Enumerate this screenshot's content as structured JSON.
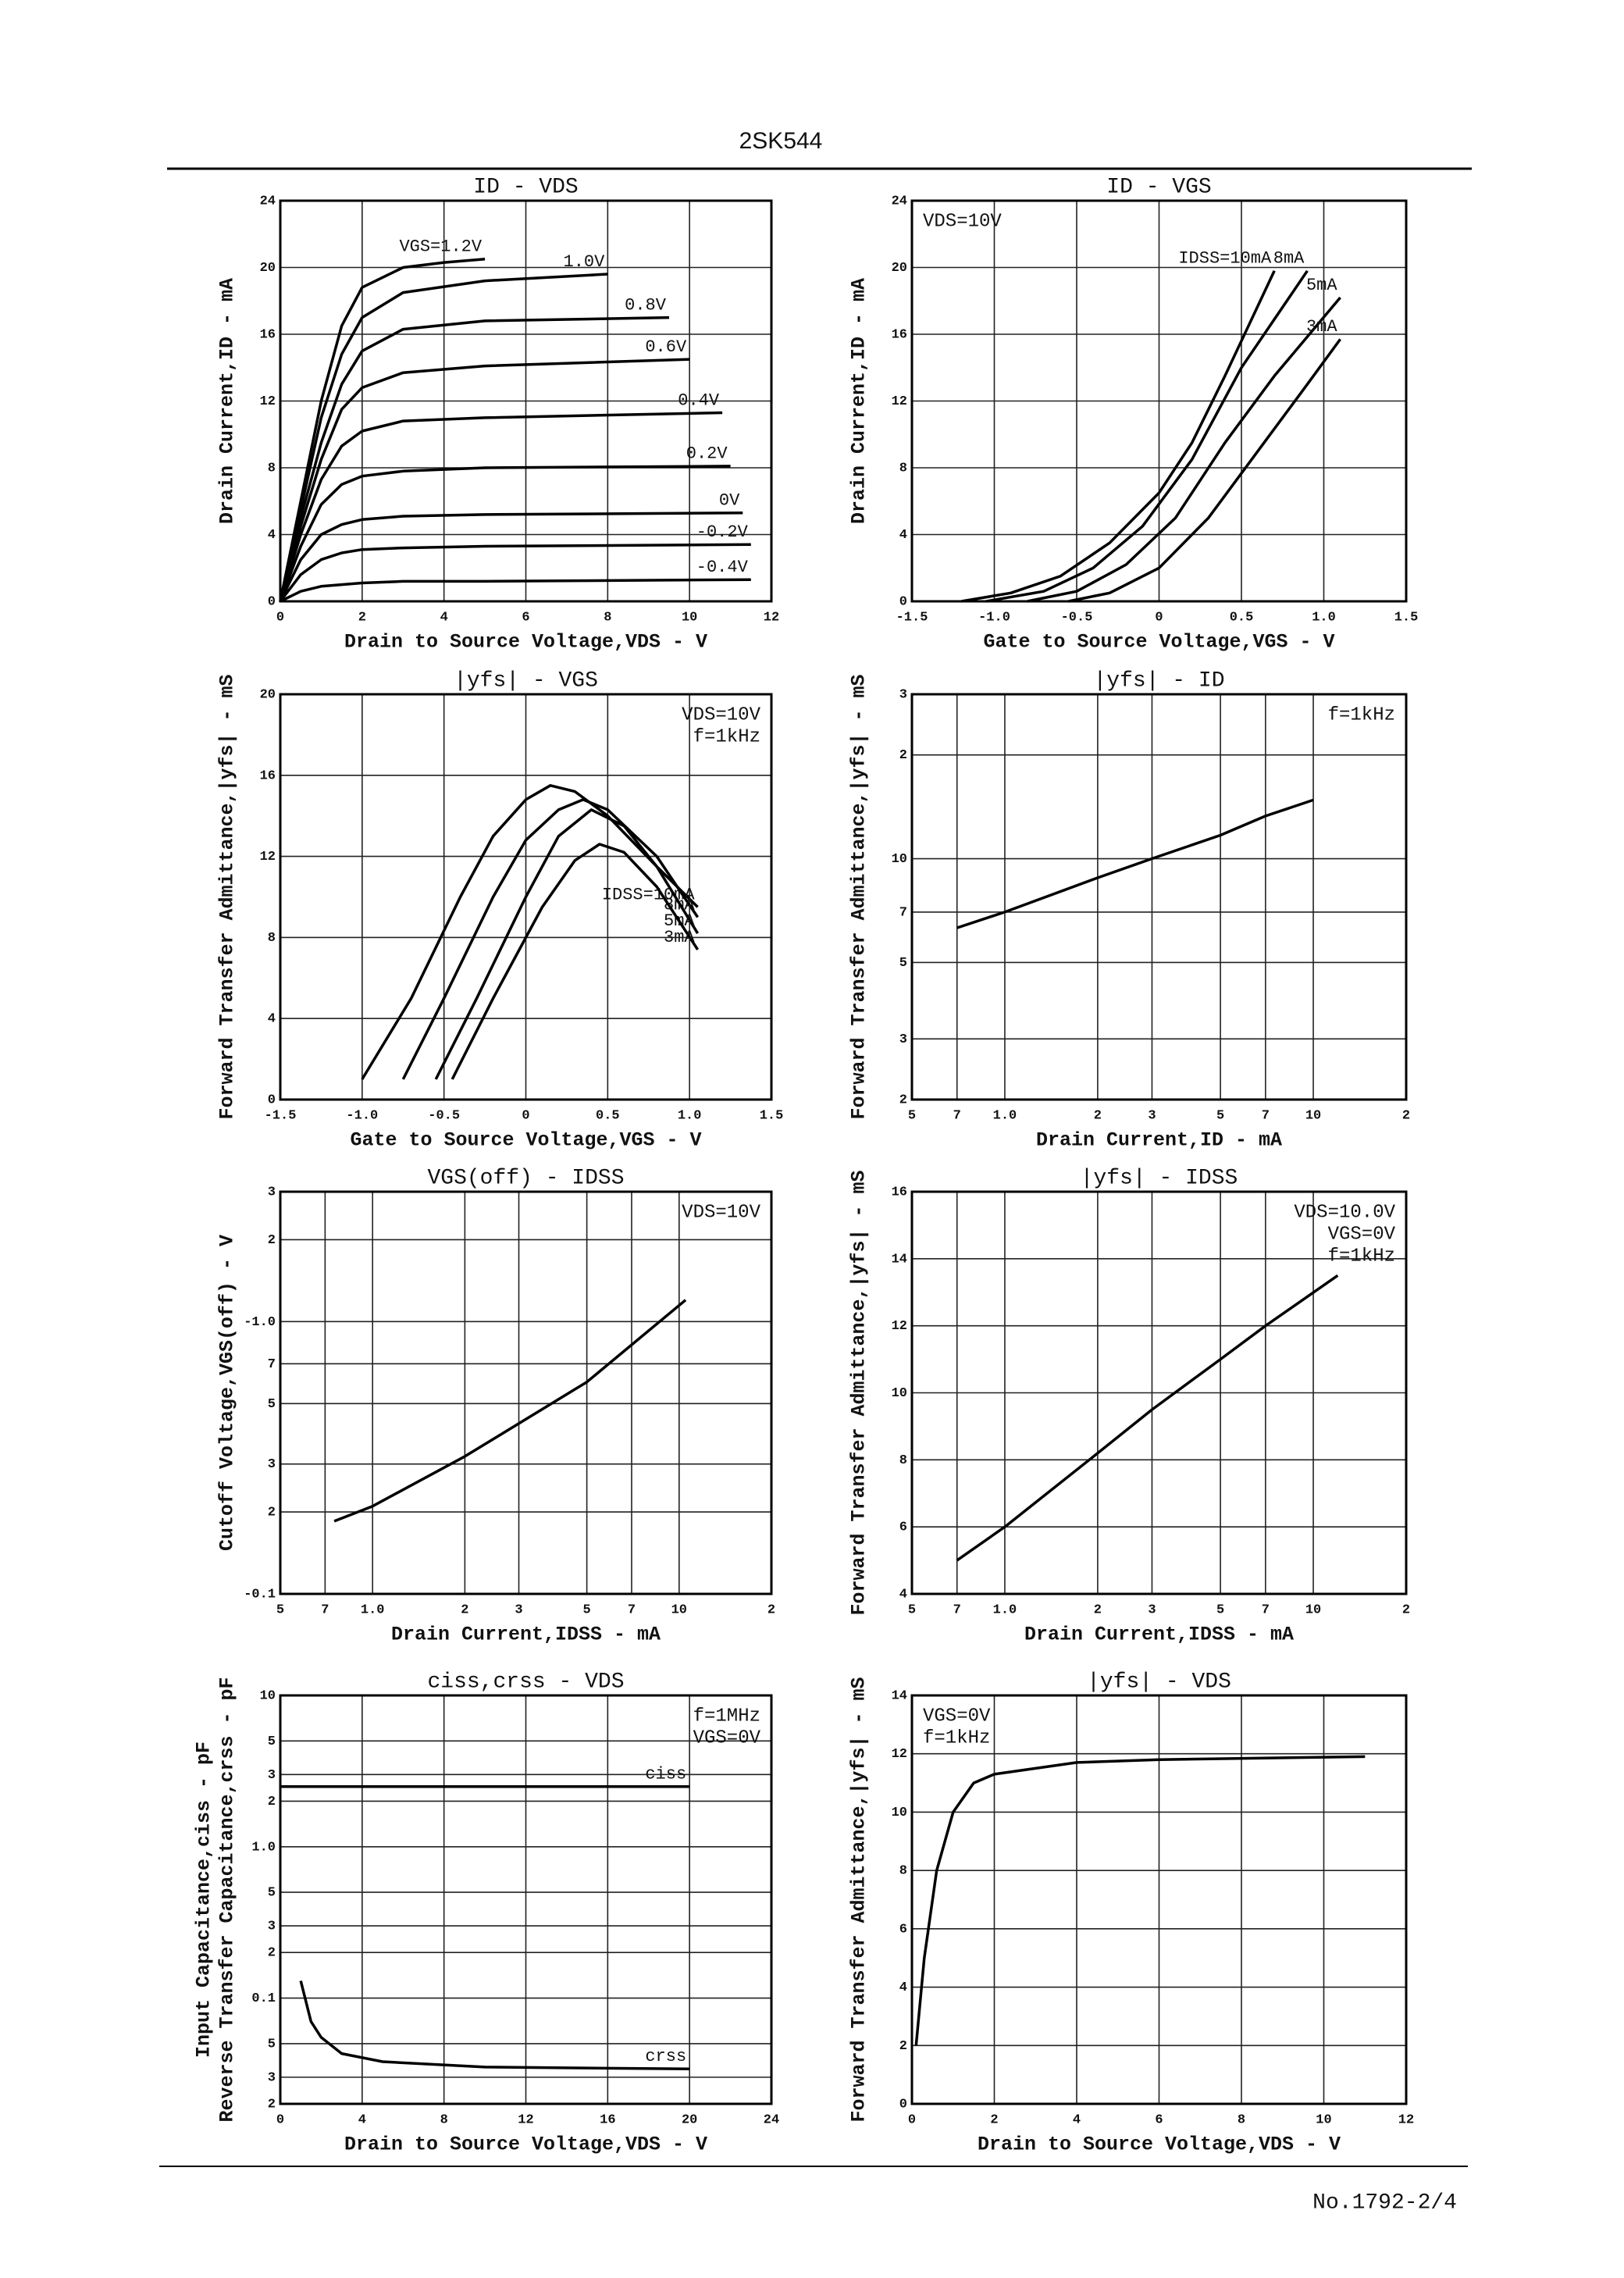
{
  "page": {
    "title": "2SK544",
    "footer": "No.1792-2/4"
  },
  "chart_data": [
    {
      "type": "line",
      "title": "ID - VDS",
      "xlabel": "Drain to Source Voltage,VDS - V",
      "ylabel": "Drain Current,ID - mA",
      "xlim": [
        0,
        12
      ],
      "xticks": [
        0,
        2,
        4,
        6,
        8,
        10,
        12
      ],
      "ylim": [
        0,
        24
      ],
      "yticks": [
        0,
        4,
        8,
        12,
        16,
        20,
        24
      ],
      "grid": true,
      "color": "#000000",
      "series": [
        {
          "name": "VGS=1.2V",
          "x": [
            0,
            0.5,
            1,
            1.5,
            2,
            3,
            4,
            5
          ],
          "values": [
            0,
            6,
            12,
            16.5,
            18.8,
            20,
            20.3,
            20.5
          ]
        },
        {
          "name": "1.0V",
          "x": [
            0,
            0.5,
            1,
            1.5,
            2,
            3,
            5,
            8
          ],
          "values": [
            0,
            5.5,
            11,
            14.8,
            17,
            18.5,
            19.2,
            19.6
          ]
        },
        {
          "name": "0.8V",
          "x": [
            0,
            0.5,
            1,
            1.5,
            2,
            3,
            5,
            9.5
          ],
          "values": [
            0,
            5,
            9.5,
            13,
            15,
            16.3,
            16.8,
            17
          ]
        },
        {
          "name": "0.6V",
          "x": [
            0,
            0.5,
            1,
            1.5,
            2,
            3,
            5,
            10
          ],
          "values": [
            0,
            4.5,
            8.5,
            11.5,
            12.8,
            13.7,
            14.1,
            14.5
          ]
        },
        {
          "name": "0.4V",
          "x": [
            0,
            0.5,
            1,
            1.5,
            2,
            3,
            5,
            10.8
          ],
          "values": [
            0,
            4,
            7.3,
            9.3,
            10.2,
            10.8,
            11,
            11.3
          ]
        },
        {
          "name": "0.2V",
          "x": [
            0,
            0.5,
            1,
            1.5,
            2,
            3,
            5,
            11
          ],
          "values": [
            0,
            3.3,
            5.8,
            7,
            7.5,
            7.8,
            8,
            8.1
          ]
        },
        {
          "name": "0V",
          "x": [
            0,
            0.5,
            1,
            1.5,
            2,
            3,
            5,
            11.3
          ],
          "values": [
            0,
            2.5,
            4,
            4.6,
            4.9,
            5.1,
            5.2,
            5.3
          ]
        },
        {
          "name": "-0.2V",
          "x": [
            0,
            0.5,
            1,
            1.5,
            2,
            3,
            5,
            11.5
          ],
          "values": [
            0,
            1.6,
            2.5,
            2.9,
            3.1,
            3.2,
            3.3,
            3.4
          ]
        },
        {
          "name": "-0.4V",
          "x": [
            0,
            0.5,
            1,
            2,
            3,
            5,
            11.5
          ],
          "values": [
            0,
            0.6,
            0.9,
            1.1,
            1.2,
            1.2,
            1.3
          ]
        }
      ]
    },
    {
      "type": "line",
      "title": "ID - VGS",
      "xlabel": "Gate to Source Voltage,VGS - V",
      "ylabel": "Drain Current,ID - mA",
      "xlim": [
        -1.5,
        1.5
      ],
      "xticks": [
        {
          "value": -1.5,
          "label": "-1.5"
        },
        {
          "value": -1,
          "label": "-1.0"
        },
        {
          "value": -0.5,
          "label": "-0.5"
        },
        0,
        0.5,
        {
          "value": 1,
          "label": "1.0"
        },
        1.5
      ],
      "ylim": [
        0,
        24
      ],
      "yticks": [
        0,
        4,
        8,
        12,
        16,
        20,
        24
      ],
      "grid": true,
      "color": "#000000",
      "notes": [
        "VDS=10V"
      ],
      "note_corner": "upper left",
      "series": [
        {
          "name": "IDSS=10mA",
          "x": [
            -1.2,
            -0.9,
            -0.6,
            -0.3,
            0,
            0.2,
            0.4,
            0.7
          ],
          "values": [
            0,
            0.5,
            1.5,
            3.5,
            6.5,
            9.5,
            13.5,
            19.8
          ]
        },
        {
          "name": "8mA",
          "x": [
            -1.05,
            -0.7,
            -0.4,
            -0.1,
            0.2,
            0.5,
            0.9
          ],
          "values": [
            0,
            0.6,
            2,
            4.5,
            8.5,
            14,
            19.8
          ]
        },
        {
          "name": "5mA",
          "x": [
            -0.8,
            -0.5,
            -0.2,
            0.1,
            0.4,
            0.7,
            1.1
          ],
          "values": [
            0,
            0.6,
            2.2,
            5,
            9.5,
            13.5,
            18.2
          ]
        },
        {
          "name": "3mA",
          "x": [
            -0.55,
            -0.3,
            0,
            0.3,
            0.6,
            0.9,
            1.1
          ],
          "values": [
            0,
            0.5,
            2,
            5,
            9,
            13,
            15.7
          ]
        }
      ]
    },
    {
      "type": "line",
      "title": "|yfs| - VGS",
      "xlabel": "Gate to Source Voltage,VGS - V",
      "ylabel": "Forward Transfer Admittance,|yfs| - mS",
      "xlim": [
        -1.5,
        1.5
      ],
      "xticks": [
        {
          "value": -1.5,
          "label": "-1.5"
        },
        {
          "value": -1,
          "label": "-1.0"
        },
        {
          "value": -0.5,
          "label": "-0.5"
        },
        0,
        0.5,
        {
          "value": 1,
          "label": "1.0"
        },
        1.5
      ],
      "ylim": [
        0,
        20
      ],
      "yticks": [
        0,
        4,
        8,
        12,
        16,
        20
      ],
      "grid": true,
      "color": "#000000",
      "notes": [
        "VDS=10V",
        "f=1kHz"
      ],
      "note_corner": "upper right",
      "series": [
        {
          "name": "IDSS=10mA",
          "x": [
            -1,
            -0.7,
            -0.4,
            -0.2,
            0,
            0.15,
            0.3,
            0.5,
            0.8,
            1.05
          ],
          "values": [
            1,
            5,
            10,
            13,
            14.8,
            15.5,
            15.2,
            14,
            11.5,
            9.5
          ]
        },
        {
          "name": "8mA",
          "x": [
            -0.75,
            -0.5,
            -0.2,
            0,
            0.2,
            0.35,
            0.5,
            0.8,
            1.05
          ],
          "values": [
            1,
            5,
            10,
            12.8,
            14.3,
            14.8,
            14.3,
            12,
            9
          ]
        },
        {
          "name": "5mA",
          "x": [
            -0.55,
            -0.3,
            0,
            0.2,
            0.4,
            0.6,
            0.8,
            1.05
          ],
          "values": [
            1,
            5,
            10,
            13,
            14.3,
            13.5,
            11.5,
            8.2
          ]
        },
        {
          "name": "3mA",
          "x": [
            -0.45,
            -0.2,
            0.1,
            0.3,
            0.45,
            0.6,
            0.8,
            1.05
          ],
          "values": [
            1,
            5,
            9.5,
            11.8,
            12.6,
            12.2,
            10.5,
            7.4
          ]
        }
      ]
    },
    {
      "type": "line",
      "title": "|yfs| - ID",
      "xlabel": "Drain Current,ID - mA",
      "ylabel": "Forward Transfer Admittance,|yfs| - mS",
      "xlog": true,
      "ylog": true,
      "xlim": [
        0.5,
        20
      ],
      "xticks": [
        {
          "value": 0.5,
          "label": "5"
        },
        {
          "value": 0.7,
          "label": "7"
        },
        {
          "value": 1,
          "label": "1.0"
        },
        2,
        3,
        5,
        7,
        10,
        {
          "value": 20,
          "label": "2"
        }
      ],
      "ylim": [
        2,
        30
      ],
      "yticks": [
        2,
        3,
        5,
        7,
        10,
        {
          "value": 20,
          "label": "2"
        },
        {
          "value": 30,
          "label": "3"
        }
      ],
      "grid": true,
      "color": "#000000",
      "notes": [
        "f=1kHz"
      ],
      "note_corner": "upper right",
      "series": [
        {
          "x": [
            0.7,
            1,
            2,
            3,
            5,
            7,
            10
          ],
          "values": [
            6.3,
            7,
            8.8,
            10,
            11.7,
            13.3,
            14.8
          ]
        }
      ]
    },
    {
      "type": "line",
      "title": "VGS(off) - IDSS",
      "xlabel": "Drain Current,IDSS - mA",
      "ylabel": "Cutoff Voltage,VGS(off) - V",
      "xlog": true,
      "ylog": true,
      "xlim": [
        0.5,
        20
      ],
      "xticks": [
        {
          "value": 0.5,
          "label": "5"
        },
        {
          "value": 0.7,
          "label": "7"
        },
        {
          "value": 1,
          "label": "1.0"
        },
        2,
        3,
        5,
        7,
        10,
        {
          "value": 20,
          "label": "2"
        }
      ],
      "ylim": [
        0.1,
        3
      ],
      "yticks": [
        {
          "value": 0.1,
          "label": "-0.1"
        },
        {
          "value": 0.2,
          "label": "2"
        },
        {
          "value": 0.3,
          "label": "3"
        },
        {
          "value": 0.5,
          "label": "5"
        },
        {
          "value": 0.7,
          "label": "7"
        },
        {
          "value": 1,
          "label": "-1.0"
        },
        2,
        3
      ],
      "grid": true,
      "color": "#000000",
      "notes": [
        "VDS=10V"
      ],
      "note_corner": "upper right",
      "series": [
        {
          "x": [
            0.75,
            1,
            2,
            5,
            10.5
          ],
          "values": [
            0.185,
            0.21,
            0.32,
            0.6,
            1.2
          ]
        }
      ]
    },
    {
      "type": "line",
      "title": "|yfs| - IDSS",
      "xlabel": "Drain Current,IDSS - mA",
      "ylabel": "Forward Transfer Admittance,|yfs| - mS",
      "xlog": true,
      "xlim": [
        0.5,
        20
      ],
      "xticks": [
        {
          "value": 0.5,
          "label": "5"
        },
        {
          "value": 0.7,
          "label": "7"
        },
        {
          "value": 1,
          "label": "1.0"
        },
        2,
        3,
        5,
        7,
        10,
        {
          "value": 20,
          "label": "2"
        }
      ],
      "ylim": [
        4,
        16
      ],
      "yticks": [
        4,
        6,
        8,
        10,
        12,
        14,
        16
      ],
      "grid": true,
      "color": "#000000",
      "notes": [
        "VDS=10.0V",
        "VGS=0V",
        "f=1kHz"
      ],
      "note_corner": "upper right",
      "series": [
        {
          "x": [
            0.7,
            1,
            2,
            3,
            5,
            7,
            12
          ],
          "values": [
            5,
            6,
            8.2,
            9.5,
            11,
            12,
            13.5
          ]
        }
      ]
    },
    {
      "type": "line",
      "title": "ciss,crss - VDS",
      "xlabel": "Drain to Source Voltage,VDS - V",
      "ylabel": [
        "Input Capacitance,ciss - pF",
        "Reverse Transfer Capacitance,crss - pF"
      ],
      "ylog": true,
      "xlim": [
        0,
        24
      ],
      "xticks": [
        0,
        4,
        8,
        12,
        16,
        20,
        24
      ],
      "ylim": [
        0.02,
        10
      ],
      "yticks": [
        {
          "value": 0.02,
          "label": "2"
        },
        {
          "value": 0.03,
          "label": "3"
        },
        {
          "value": 0.05,
          "label": "5"
        },
        0.1,
        {
          "value": 0.2,
          "label": "2"
        },
        {
          "value": 0.3,
          "label": "3"
        },
        {
          "value": 0.5,
          "label": "5"
        },
        {
          "value": 1,
          "label": "1.0"
        },
        2,
        3,
        5,
        10
      ],
      "grid": true,
      "color": "#000000",
      "notes": [
        "f=1MHz",
        "VGS=0V"
      ],
      "note_corner": "upper right",
      "series": [
        {
          "name": "ciss",
          "x": [
            0,
            20
          ],
          "values": [
            2.5,
            2.5
          ]
        },
        {
          "name": "crss",
          "x": [
            1,
            1.5,
            2,
            3,
            5,
            10,
            20
          ],
          "values": [
            0.13,
            0.07,
            0.055,
            0.043,
            0.038,
            0.035,
            0.034
          ]
        }
      ]
    },
    {
      "type": "line",
      "title": "|yfs| - VDS",
      "xlabel": "Drain to Source Voltage,VDS - V",
      "ylabel": "Forward Transfer Admittance,|yfs| - mS",
      "xlim": [
        0,
        12
      ],
      "xticks": [
        0,
        2,
        4,
        6,
        8,
        10,
        12
      ],
      "ylim": [
        0,
        14
      ],
      "yticks": [
        0,
        2,
        4,
        6,
        8,
        10,
        12,
        14
      ],
      "grid": true,
      "color": "#000000",
      "notes": [
        "VGS=0V",
        "f=1kHz"
      ],
      "note_corner": "upper left",
      "series": [
        {
          "x": [
            0.1,
            0.3,
            0.6,
            1,
            1.5,
            2,
            4,
            6,
            11
          ],
          "values": [
            2,
            5,
            8,
            10,
            11,
            11.3,
            11.7,
            11.8,
            11.9
          ]
        }
      ]
    }
  ]
}
